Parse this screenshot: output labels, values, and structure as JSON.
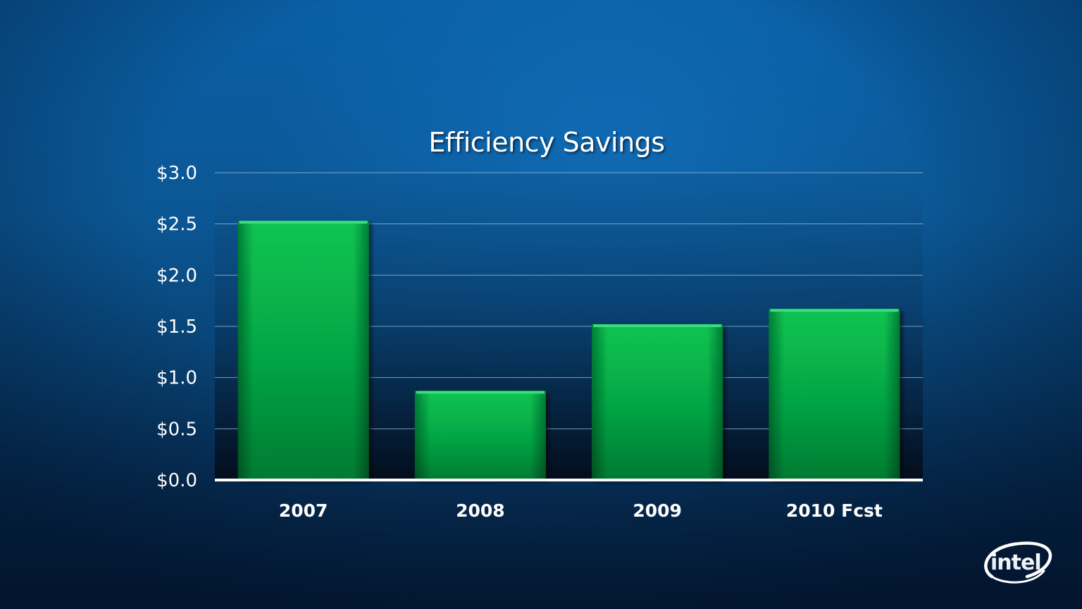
{
  "slide": {
    "background_color": "#0a5fa5"
  },
  "chart_data": {
    "type": "bar",
    "title": "Efficiency Savings",
    "categories": [
      "2007",
      "2008",
      "2009",
      "2010 Fcst"
    ],
    "values": [
      2.53,
      0.87,
      1.52,
      1.67
    ],
    "ylim": [
      0,
      3.0
    ],
    "yticks": [
      "$0.0",
      "$0.5",
      "$1.0",
      "$1.5",
      "$2.0",
      "$2.5",
      "$3.0"
    ],
    "ytick_values": [
      0,
      0.5,
      1.0,
      1.5,
      2.0,
      2.5,
      3.0
    ],
    "xlabel": "",
    "ylabel": "",
    "grid": true,
    "legend": "none",
    "bar_color": "#0bb84a"
  },
  "logo": {
    "text": "intel",
    "icon": "intel-logo"
  }
}
